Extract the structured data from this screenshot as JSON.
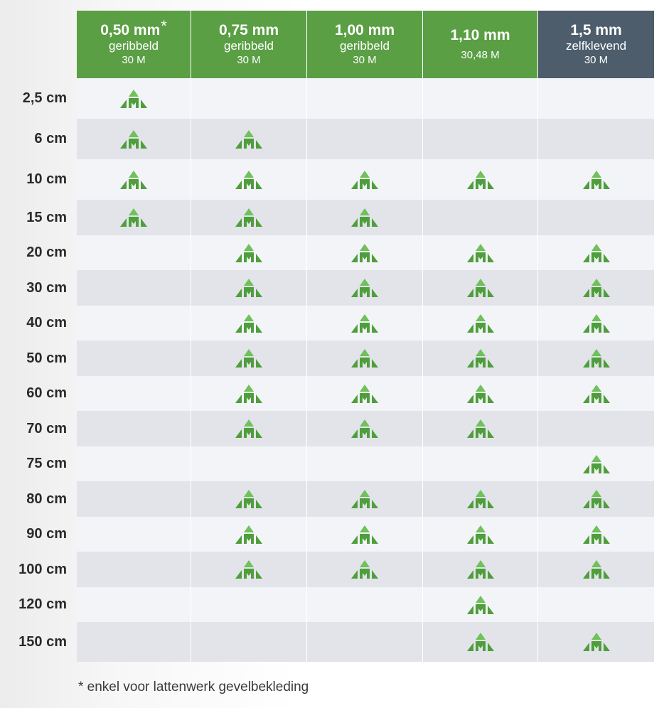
{
  "columns": [
    {
      "size": "0,50 mm",
      "star": "*",
      "type": "geribbeld",
      "length": "30 M",
      "color": "#5a9f44"
    },
    {
      "size": "0,75 mm",
      "star": "",
      "type": "geribbeld",
      "length": "30 M",
      "color": "#5a9f44"
    },
    {
      "size": "1,00 mm",
      "star": "",
      "type": "geribbeld",
      "length": "30 M",
      "color": "#5a9f44"
    },
    {
      "size": "1,10 mm",
      "star": "",
      "type": "",
      "length": "30,48 M",
      "color": "#5a9f44"
    },
    {
      "size": "1,5 mm",
      "star": "",
      "type": "zelfklevend",
      "length": "30 M",
      "color": "#4d5d6c"
    }
  ],
  "rows": [
    {
      "label": "2,5 cm",
      "available": [
        true,
        false,
        false,
        false,
        false
      ]
    },
    {
      "label": "6 cm",
      "available": [
        true,
        true,
        false,
        false,
        false
      ]
    },
    {
      "label": "10 cm",
      "available": [
        true,
        true,
        true,
        true,
        true
      ]
    },
    {
      "label": "15 cm",
      "available": [
        true,
        true,
        true,
        false,
        false
      ]
    },
    {
      "label": "20 cm",
      "available": [
        false,
        true,
        true,
        true,
        true
      ]
    },
    {
      "label": "30 cm",
      "available": [
        false,
        true,
        true,
        true,
        true
      ]
    },
    {
      "label": "40 cm",
      "available": [
        false,
        true,
        true,
        true,
        true
      ]
    },
    {
      "label": "50 cm",
      "available": [
        false,
        true,
        true,
        true,
        true
      ]
    },
    {
      "label": "60 cm",
      "available": [
        false,
        true,
        true,
        true,
        true
      ]
    },
    {
      "label": "70 cm",
      "available": [
        false,
        true,
        true,
        true,
        false
      ]
    },
    {
      "label": "75 cm",
      "available": [
        false,
        false,
        false,
        false,
        true
      ]
    },
    {
      "label": "80 cm",
      "available": [
        false,
        true,
        true,
        true,
        true
      ]
    },
    {
      "label": "90 cm",
      "available": [
        false,
        true,
        true,
        true,
        true
      ]
    },
    {
      "label": "100 cm",
      "available": [
        false,
        true,
        true,
        true,
        true
      ]
    },
    {
      "label": "120 cm",
      "available": [
        false,
        false,
        false,
        true,
        false
      ]
    },
    {
      "label": "150 cm",
      "available": [
        false,
        false,
        false,
        true,
        true
      ]
    }
  ],
  "availability_icon": "green-mountain-logo-icon",
  "footnote": "* enkel voor lattenwerk gevelbekleding"
}
